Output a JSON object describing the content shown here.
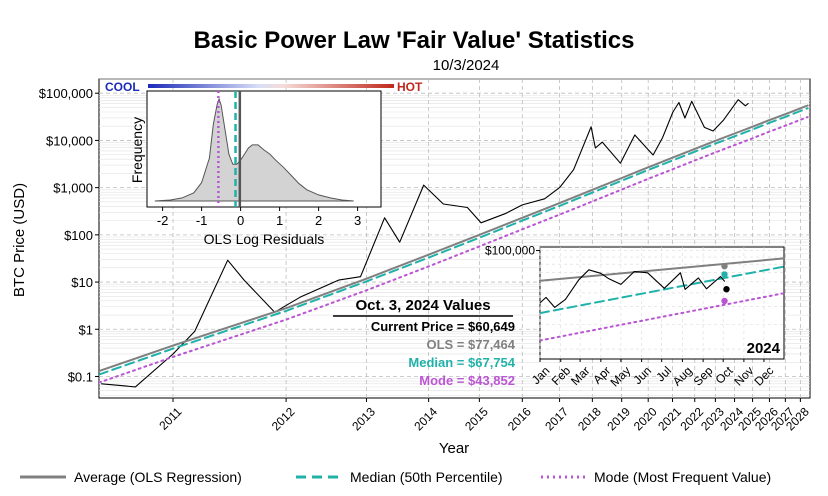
{
  "title": "Basic Power Law 'Fair Value' Statistics",
  "subtitle": "10/3/2024",
  "colors": {
    "price": "#000000",
    "ols": "#808080",
    "median": "#20b2aa",
    "mode": "#ba55d3",
    "cool": "#1c2bb8",
    "hot": "#c0281c",
    "grid": "#bdbdbd"
  },
  "chart_data": [
    {
      "type": "line",
      "title": "Basic Power Law 'Fair Value' Statistics",
      "subtitle": "10/3/2024",
      "xlabel": "Year",
      "ylabel": "BTC Price (USD)",
      "yscale": "log",
      "xscale": "log (days since genesis)",
      "ylim": [
        0.035,
        200000
      ],
      "grid": true,
      "legend_position": "bottom",
      "x_ticks": [
        "2011",
        "2012",
        "2013",
        "2014",
        "2015",
        "2016",
        "2017",
        "2018",
        "2019",
        "2020",
        "2021",
        "2022",
        "2023",
        "2024",
        "2025",
        "2026",
        "2027",
        "2028"
      ],
      "y_ticks": [
        "$0.1",
        "$1",
        "$10",
        "$100",
        "$1,000",
        "$10,000",
        "$100,000"
      ],
      "y_tick_values": [
        0.1,
        1,
        10,
        100,
        1000,
        10000,
        100000
      ],
      "series": [
        {
          "name": "Average (OLS Regression)",
          "style": "solid",
          "color": "#808080",
          "x": [
            "2010-07-15",
            "2011-01-01",
            "2012-01-01",
            "2013-01-01",
            "2014-01-01",
            "2015-01-01",
            "2016-01-01",
            "2017-01-01",
            "2018-01-01",
            "2019-01-01",
            "2020-01-01",
            "2021-01-01",
            "2022-01-01",
            "2023-01-01",
            "2024-01-01",
            "2025-01-01",
            "2026-01-01",
            "2027-01-01",
            "2028-01-01",
            "2028-07-01"
          ],
          "y": [
            0.13,
            0.45,
            2.8,
            11.8,
            38,
            100,
            230,
            470,
            900,
            1600,
            2700,
            4300,
            6600,
            9800,
            14000,
            19500,
            27000,
            36000,
            48000,
            55000
          ]
        },
        {
          "name": "Median (50th Percentile)",
          "style": "dashed",
          "color": "#20b2aa",
          "x": [
            "2010-07-15",
            "2011-01-01",
            "2012-01-01",
            "2013-01-01",
            "2014-01-01",
            "2015-01-01",
            "2016-01-01",
            "2017-01-01",
            "2018-01-01",
            "2019-01-01",
            "2020-01-01",
            "2021-01-01",
            "2022-01-01",
            "2023-01-01",
            "2024-01-01",
            "2025-01-01",
            "2026-01-01",
            "2027-01-01",
            "2028-01-01",
            "2028-07-01"
          ],
          "y": [
            0.11,
            0.39,
            2.45,
            10.3,
            33,
            87,
            200,
            410,
            785,
            1400,
            2360,
            3760,
            5770,
            8570,
            12240,
            17050,
            23600,
            31500,
            42000,
            48000
          ]
        },
        {
          "name": "Mode (Most Frequent Value)",
          "style": "dotted",
          "color": "#ba55d3",
          "x": [
            "2010-07-15",
            "2011-01-01",
            "2012-01-01",
            "2013-01-01",
            "2014-01-01",
            "2015-01-01",
            "2016-01-01",
            "2017-01-01",
            "2018-01-01",
            "2019-01-01",
            "2020-01-01",
            "2021-01-01",
            "2022-01-01",
            "2023-01-01",
            "2024-01-01",
            "2025-01-01",
            "2026-01-01",
            "2027-01-01",
            "2028-01-01",
            "2028-07-01"
          ],
          "y": [
            0.074,
            0.26,
            1.6,
            6.7,
            21.5,
            57,
            131,
            268,
            512,
            910,
            1540,
            2450,
            3760,
            5580,
            7970,
            11100,
            15400,
            20500,
            27300,
            31200
          ]
        },
        {
          "name": "BTC Price",
          "style": "solid",
          "color": "#000000",
          "x": [
            "2010-07-20",
            "2010-10-01",
            "2011-01-01",
            "2011-03-01",
            "2011-06-08",
            "2011-08-01",
            "2011-11-18",
            "2012-03-01",
            "2012-08-15",
            "2012-12-01",
            "2013-04-09",
            "2013-07-05",
            "2013-11-30",
            "2014-04-10",
            "2014-10-01",
            "2015-01-14",
            "2015-08-01",
            "2016-01-01",
            "2016-08-01",
            "2017-01-01",
            "2017-06-01",
            "2017-12-17",
            "2018-02-06",
            "2018-05-01",
            "2018-12-15",
            "2019-06-26",
            "2019-12-18",
            "2020-03-12",
            "2020-08-01",
            "2021-01-08",
            "2021-04-14",
            "2021-07-20",
            "2021-11-10",
            "2022-06-18",
            "2022-11-21",
            "2023-06-01",
            "2024-03-14",
            "2024-08-05",
            "2024-10-03"
          ],
          "y": [
            0.07,
            0.06,
            0.3,
            0.9,
            29,
            11,
            2.3,
            4.9,
            11,
            13,
            230,
            70,
            1130,
            450,
            380,
            180,
            280,
            430,
            580,
            1000,
            2400,
            19400,
            6900,
            9200,
            3300,
            13000,
            6700,
            4900,
            11500,
            40000,
            63500,
            29800,
            67500,
            18900,
            15800,
            27000,
            73000,
            54000,
            60649
          ]
        }
      ]
    },
    {
      "type": "area",
      "title": "",
      "xlabel": "OLS Log Residuals",
      "ylabel": "Frequency",
      "xlim": [
        -2.4,
        3.6
      ],
      "x_ticks": [
        "-2",
        "-1",
        "0",
        "1",
        "2",
        "3"
      ],
      "x_tick_values": [
        -2,
        -1,
        0,
        1,
        2,
        3
      ],
      "scale_labels": {
        "low": "COOL",
        "high": "HOT"
      },
      "density": {
        "x": [
          -2.2,
          -1.8,
          -1.5,
          -1.2,
          -1.0,
          -0.8,
          -0.7,
          -0.6,
          -0.55,
          -0.5,
          -0.4,
          -0.3,
          -0.2,
          -0.1,
          0.0,
          0.1,
          0.2,
          0.3,
          0.45,
          0.6,
          0.75,
          0.9,
          1.1,
          1.3,
          1.5,
          1.7,
          2.0,
          2.3,
          2.6,
          2.9
        ],
        "y": [
          0.0,
          0.01,
          0.03,
          0.08,
          0.18,
          0.42,
          0.75,
          0.95,
          1.0,
          0.94,
          0.7,
          0.46,
          0.36,
          0.36,
          0.4,
          0.46,
          0.52,
          0.55,
          0.55,
          0.5,
          0.46,
          0.4,
          0.33,
          0.25,
          0.17,
          0.11,
          0.06,
          0.03,
          0.01,
          0.0
        ]
      },
      "markers": [
        {
          "name": "Mode",
          "x": -0.57,
          "style": "dotted",
          "color": "#ba55d3"
        },
        {
          "name": "Median",
          "x": -0.13,
          "style": "dashed",
          "color": "#20b2aa"
        },
        {
          "name": "Current",
          "x": -0.02,
          "style": "solid",
          "color": "#555555"
        }
      ]
    },
    {
      "type": "line",
      "title": "2024",
      "yscale": "log",
      "y_ticks": [
        "$100,000"
      ],
      "y_tick_values": [
        100000
      ],
      "x_ticks": [
        "Jan",
        "Feb",
        "Mar",
        "Apr",
        "May",
        "Jun",
        "Jul",
        "Aug",
        "Sep",
        "Oct",
        "Nov",
        "Dec"
      ],
      "series": [
        {
          "name": "OLS",
          "style": "solid",
          "color": "#808080",
          "x": [
            "2024-01-01",
            "2024-12-31"
          ],
          "y": [
            61000,
            88000
          ]
        },
        {
          "name": "Median",
          "style": "dashed",
          "color": "#20b2aa",
          "x": [
            "2024-01-01",
            "2024-12-31"
          ],
          "y": [
            36000,
            77000
          ]
        },
        {
          "name": "Mode",
          "style": "dotted",
          "color": "#ba55d3",
          "x": [
            "2024-01-01",
            "2024-12-31"
          ],
          "y": [
            23000,
            49800
          ]
        },
        {
          "name": "Price",
          "style": "solid",
          "color": "#000000",
          "x": [
            "2024-01-01",
            "2024-01-10",
            "2024-01-23",
            "2024-02-08",
            "2024-02-28",
            "2024-03-14",
            "2024-04-01",
            "2024-04-13",
            "2024-05-01",
            "2024-05-21",
            "2024-06-10",
            "2024-07-05",
            "2024-07-29",
            "2024-08-05",
            "2024-08-25",
            "2024-09-06",
            "2024-09-27",
            "2024-10-03"
          ],
          "y": [
            42500,
            46500,
            39500,
            45000,
            62000,
            73000,
            69000,
            63000,
            57500,
            71000,
            69500,
            54000,
            69500,
            53000,
            64000,
            53500,
            65500,
            60649
          ]
        }
      ],
      "points": [
        {
          "name": "OLS",
          "date": "2024-10-03",
          "value": 77464
        },
        {
          "name": "Median",
          "date": "2024-10-03",
          "value": 67754
        },
        {
          "name": "Mode",
          "date": "2024-10-03",
          "value": 43852
        },
        {
          "name": "Current Price",
          "date": "2024-10-03",
          "value": 60649
        }
      ]
    }
  ],
  "values_box": {
    "title": "Oct. 3, 2024 Values",
    "current": "Current Price = $60,649",
    "ols": "OLS = $77,464",
    "median": "Median = $67,754",
    "mode": "Mode = $43,852"
  },
  "legend": {
    "ols": "Average (OLS Regression)",
    "median": "Median (50th Percentile)",
    "mode": "Mode (Most Frequent Value)"
  }
}
